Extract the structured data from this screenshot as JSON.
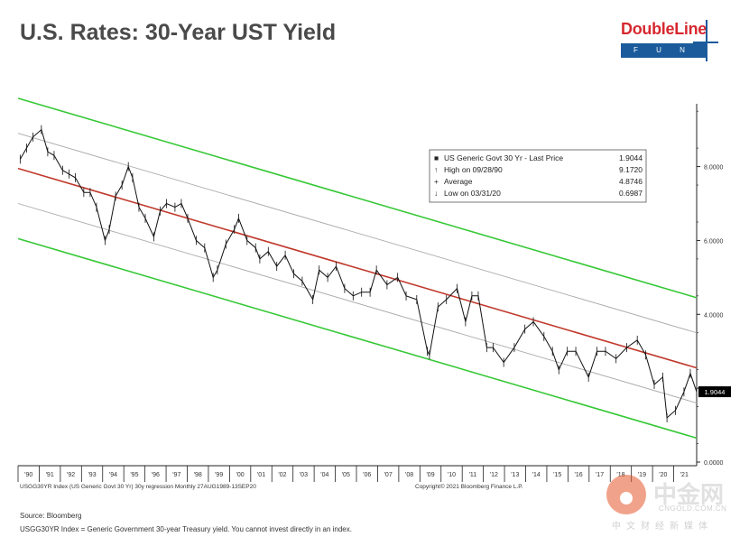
{
  "page": {
    "title": "U.S. Rates: 30-Year UST Yield",
    "logo_top": "DoubleLine",
    "logo_bottom": "F U N D S",
    "source": "Source: Bloomberg",
    "footnote": "USGG30YR Index = Generic Government 30-year Treasury yield.  You cannot invest directly in an index.",
    "watermark_cn": "中金网",
    "watermark_en": "CNGOLD.COM.CN",
    "watermark_sub": "中文财经新媒体"
  },
  "chart_data": {
    "type": "line",
    "title": "",
    "xlabel": "",
    "ylabel": "",
    "subtitle_left": "USGG30YR Index (US Generic Govt 30 Yr) 30y regression  Monthly 27AUG1989-13SEP20",
    "subtitle_right": "Copyright© 2021 Bloomberg Finance L.P.",
    "x_ticks": [
      "'90",
      "'91",
      "'92",
      "'93",
      "'94",
      "'95",
      "'96",
      "'97",
      "'98",
      "'99",
      "'00",
      "'01",
      "'02",
      "'03",
      "'04",
      "'05",
      "'06",
      "'07",
      "'08",
      "'09",
      "'10",
      "'11",
      "'12",
      "'13",
      "'14",
      "'15",
      "'16",
      "'17",
      "'18",
      "'19",
      "'20",
      "'21"
    ],
    "y_ticks": [
      "8.0000",
      "6.0000",
      "4.0000",
      "2.0000",
      "0.0000"
    ],
    "y_tick_values": [
      8,
      6,
      4,
      2,
      0
    ],
    "ylim": [
      0,
      9.7
    ],
    "xlim": [
      1989.6,
      2021.6
    ],
    "last_price_label": "1.9044",
    "legend_rows": [
      {
        "symbol": "■",
        "label": "US Generic Govt 30 Yr - Last Price",
        "value": "1.9044"
      },
      {
        "symbol": "↑",
        "label": "High on 09/28/90",
        "value": "9.1720"
      },
      {
        "symbol": "+",
        "label": "Average",
        "value": "4.8746"
      },
      {
        "symbol": "↓",
        "label": "Low on 03/31/20",
        "value": "0.6987"
      }
    ],
    "regression": {
      "start": [
        1989.6,
        7.95
      ],
      "end": [
        2021.6,
        2.55
      ]
    },
    "channel_offsets": {
      "inner": 0.95,
      "outer": 1.9
    },
    "colors": {
      "price": "#111111",
      "regression": "#c0392b",
      "outer_band": "#37c837",
      "inner_band": "#a9a9a9"
    },
    "series": [
      {
        "x": [
          1989.7,
          1990.0,
          1990.3,
          1990.7,
          1991.0,
          1991.3,
          1991.7,
          1992.0,
          1992.3,
          1992.7,
          1993.0,
          1993.3,
          1993.7,
          1993.9,
          1994.2,
          1994.5,
          1994.8,
          1995.0,
          1995.3,
          1995.6,
          1996.0,
          1996.3,
          1996.6,
          1997.0,
          1997.3,
          1997.6,
          1998.0,
          1998.4,
          1998.8,
          1999.0,
          1999.4,
          1999.8,
          2000.0,
          2000.4,
          2000.8,
          2001.0,
          2001.4,
          2001.8,
          2002.2,
          2002.6,
          2003.0,
          2003.5,
          2003.8,
          2004.2,
          2004.6,
          2005.0,
          2005.4,
          2005.8,
          2006.2,
          2006.5,
          2007.0,
          2007.5,
          2007.9,
          2008.4,
          2008.9,
          2009.0,
          2009.4,
          2009.8,
          2010.3,
          2010.7,
          2011.0,
          2011.3,
          2011.7,
          2012.0,
          2012.5,
          2013.0,
          2013.5,
          2013.9,
          2014.4,
          2014.8,
          2015.1,
          2015.5,
          2015.9,
          2016.5,
          2016.9,
          2017.3,
          2017.8,
          2018.3,
          2018.8,
          2019.2,
          2019.6,
          2020.0,
          2020.2,
          2020.6,
          2021.0,
          2021.3,
          2021.6
        ],
        "y": [
          8.2,
          8.5,
          8.8,
          9.0,
          8.4,
          8.3,
          7.9,
          7.8,
          7.7,
          7.3,
          7.3,
          6.9,
          6.0,
          6.3,
          7.2,
          7.5,
          8.0,
          7.7,
          6.9,
          6.6,
          6.1,
          6.8,
          7.0,
          6.9,
          7.0,
          6.6,
          6.0,
          5.8,
          5.0,
          5.2,
          5.9,
          6.3,
          6.6,
          6.0,
          5.8,
          5.5,
          5.7,
          5.3,
          5.6,
          5.1,
          4.9,
          4.4,
          5.2,
          5.0,
          5.3,
          4.7,
          4.5,
          4.6,
          4.6,
          5.2,
          4.8,
          5.0,
          4.5,
          4.4,
          3.0,
          2.9,
          4.2,
          4.4,
          4.7,
          3.8,
          4.5,
          4.5,
          3.1,
          3.1,
          2.7,
          3.1,
          3.6,
          3.8,
          3.4,
          3.0,
          2.5,
          3.0,
          3.0,
          2.3,
          3.0,
          3.0,
          2.8,
          3.1,
          3.3,
          2.9,
          2.1,
          2.3,
          1.2,
          1.4,
          1.9,
          2.4,
          1.9
        ]
      }
    ]
  }
}
